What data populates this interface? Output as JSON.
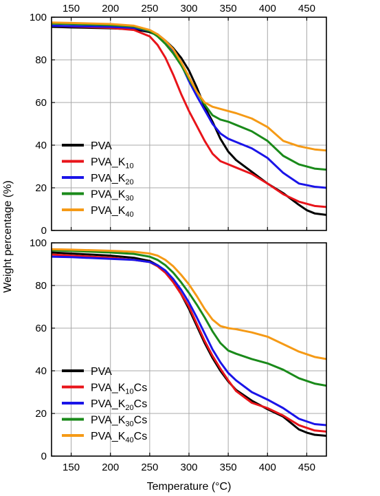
{
  "chart_data": {
    "type": "line",
    "xlabel": "Temperature (°C)",
    "ylabel": "Weight percentage (%)",
    "xlim": [
      125,
      475
    ],
    "x_ticks": [
      150,
      200,
      250,
      300,
      350,
      400,
      450
    ],
    "top_x_ticks": [
      150,
      200,
      250,
      300,
      350,
      400,
      450
    ],
    "grid": true,
    "panels": [
      {
        "id": "top",
        "ylim": [
          0,
          100
        ],
        "y_ticks": [
          0,
          20,
          40,
          60,
          80,
          100
        ],
        "legend_position": "bottom-left",
        "series": [
          {
            "name": "PVA",
            "name_base": "PVA",
            "name_sub": "",
            "name_suffix": "",
            "color": "#000000",
            "x": [
              125,
              150,
              200,
              230,
              250,
              260,
              270,
              280,
              290,
              300,
              310,
              320,
              330,
              340,
              350,
              360,
              380,
              400,
              420,
              440,
              450,
              460,
              475
            ],
            "y": [
              95.5,
              95.2,
              94.8,
              94.3,
              93,
              91.5,
              89,
              85.5,
              81,
              75,
              67,
              58,
              51,
              43,
              37,
              33,
              27.5,
              22,
              17.5,
              12,
              9.5,
              8,
              7.3
            ]
          },
          {
            "name": "PVA_K10",
            "name_base": "PVA_K",
            "name_sub": "10",
            "name_suffix": "",
            "color": "#e8141a",
            "x": [
              125,
              150,
              200,
              230,
              250,
              260,
              270,
              280,
              290,
              300,
              310,
              320,
              330,
              340,
              350,
              360,
              380,
              400,
              420,
              440,
              460,
              475
            ],
            "y": [
              96,
              95.7,
              95,
              94,
              91,
              87,
              81,
              73,
              64,
              56,
              49,
              42,
              36,
              32.5,
              31,
              29.5,
              26.5,
              22,
              17,
              13.5,
              11.5,
              11
            ]
          },
          {
            "name": "PVA_K20",
            "name_base": "PVA_K",
            "name_sub": "20",
            "name_suffix": "",
            "color": "#1a14e8",
            "x": [
              125,
              150,
              200,
              230,
              250,
              260,
              270,
              280,
              290,
              300,
              310,
              320,
              330,
              340,
              350,
              360,
              380,
              400,
              420,
              440,
              460,
              475
            ],
            "y": [
              96,
              95.8,
              95.5,
              95,
              93.5,
              92,
              89,
              84.5,
              78,
              70,
              63,
              56.5,
              50,
              45.5,
              43,
              41.5,
              38.5,
              34,
              27,
              22,
              20.5,
              20
            ]
          },
          {
            "name": "PVA_K30",
            "name_base": "PVA_K",
            "name_sub": "30",
            "name_suffix": "",
            "color": "#1a8a1a",
            "x": [
              125,
              150,
              200,
              230,
              250,
              260,
              270,
              280,
              290,
              300,
              310,
              320,
              330,
              340,
              350,
              360,
              380,
              400,
              420,
              440,
              460,
              475
            ],
            "y": [
              97,
              96.8,
              96.3,
              95.6,
              93.5,
              91,
              87.5,
              83,
              77.5,
              71,
              65,
              59,
              54,
              52,
              51,
              49.5,
              46.5,
              42,
              35,
              31,
              29,
              28.5
            ]
          },
          {
            "name": "PVA_K40",
            "name_base": "PVA_K",
            "name_sub": "40",
            "name_suffix": "",
            "color": "#f59a16",
            "x": [
              125,
              150,
              200,
              230,
              250,
              260,
              270,
              280,
              290,
              300,
              310,
              320,
              330,
              340,
              350,
              360,
              380,
              400,
              420,
              440,
              460,
              475
            ],
            "y": [
              97.5,
              97.3,
              96.8,
              96,
              94,
              92,
              89,
              85,
              79,
              72,
              65,
              60,
              58,
              57,
              56,
              55,
              52.5,
              48.5,
              42,
              39.5,
              38,
              37.5
            ]
          }
        ]
      },
      {
        "id": "bottom",
        "ylim": [
          0,
          100
        ],
        "y_ticks": [
          0,
          20,
          40,
          60,
          80,
          100
        ],
        "legend_position": "bottom-left",
        "series": [
          {
            "name": "PVA",
            "name_base": "PVA",
            "name_sub": "",
            "name_suffix": "",
            "color": "#000000",
            "x": [
              125,
              150,
              200,
              230,
              250,
              260,
              270,
              280,
              290,
              300,
              310,
              320,
              330,
              340,
              350,
              360,
              380,
              400,
              420,
              440,
              450,
              460,
              475
            ],
            "y": [
              95.5,
              95,
              94,
              93,
              91.5,
              89.5,
              86.5,
              82,
              76,
              69,
              61,
              53,
              46,
              40,
              35,
              31,
              26,
              22,
              18.5,
              12.5,
              11,
              10,
              9.5
            ]
          },
          {
            "name": "PVA_K10Cs",
            "name_base": "PVA_K",
            "name_sub": "10",
            "name_suffix": "Cs",
            "color": "#e8141a",
            "x": [
              125,
              150,
              200,
              230,
              250,
              260,
              270,
              280,
              290,
              300,
              310,
              320,
              330,
              340,
              350,
              360,
              380,
              400,
              420,
              440,
              460,
              475
            ],
            "y": [
              94.5,
              94,
              93,
              92,
              91,
              89,
              86,
              81.5,
              76,
              70,
              62,
              54,
              47,
              41,
              35.5,
              30.5,
              25,
              22.5,
              19,
              14.5,
              12,
              11.5
            ]
          },
          {
            "name": "PVA_K20Cs",
            "name_base": "PVA_K",
            "name_sub": "20",
            "name_suffix": "Cs",
            "color": "#1a14e8",
            "x": [
              125,
              150,
              200,
              230,
              250,
              260,
              270,
              280,
              290,
              300,
              310,
              320,
              330,
              340,
              350,
              360,
              380,
              400,
              420,
              440,
              460,
              475
            ],
            "y": [
              93.5,
              93.3,
              92.5,
              92,
              91,
              89.5,
              87,
              83,
              78,
              72,
              65,
              57.5,
              50,
              44,
              39,
              35.5,
              30,
              26.5,
              22.5,
              17.5,
              15,
              14.5
            ]
          },
          {
            "name": "PVA_K30Cs",
            "name_base": "PVA_K",
            "name_sub": "30",
            "name_suffix": "Cs",
            "color": "#1a8a1a",
            "x": [
              125,
              150,
              200,
              230,
              250,
              260,
              270,
              280,
              290,
              300,
              310,
              320,
              330,
              340,
              350,
              360,
              380,
              400,
              420,
              440,
              460,
              475
            ],
            "y": [
              96.5,
              96.2,
              95.5,
              94.8,
              93.5,
              92,
              89.5,
              86,
              81.5,
              76.5,
              71,
              65,
              58.5,
              53,
              49.5,
              48,
              45.5,
              43.5,
              40.5,
              36.5,
              34,
              33
            ]
          },
          {
            "name": "PVA_K40Cs",
            "name_base": "PVA_K",
            "name_sub": "40",
            "name_suffix": "Cs",
            "color": "#f59a16",
            "x": [
              125,
              150,
              200,
              230,
              250,
              260,
              270,
              280,
              290,
              300,
              310,
              320,
              330,
              340,
              350,
              360,
              380,
              400,
              420,
              440,
              460,
              475
            ],
            "y": [
              97,
              96.8,
              96.3,
              95.8,
              95,
              94,
              92,
              89,
              85,
              80.5,
              75,
              69,
              64,
              61,
              60,
              59.5,
              58,
              56,
              52.5,
              49,
              46.5,
              45.5
            ]
          }
        ]
      }
    ]
  }
}
